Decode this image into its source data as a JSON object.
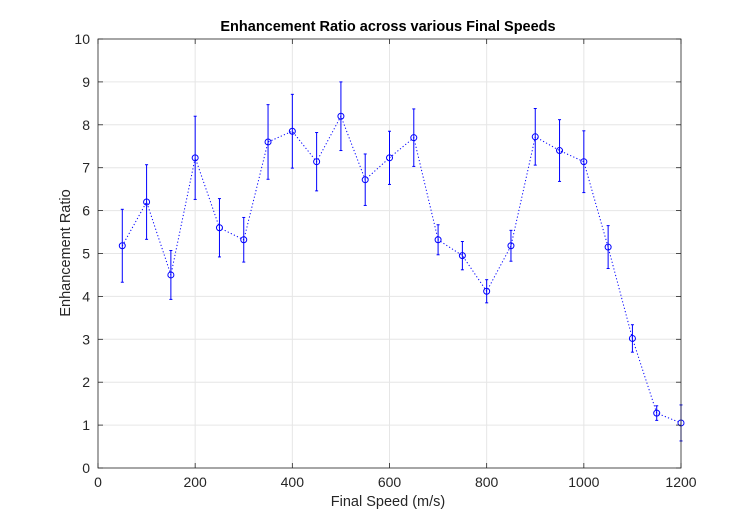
{
  "chart_data": {
    "type": "line",
    "title": "Enhancement Ratio across various Final Speeds",
    "xlabel": "Final Speed (m/s)",
    "ylabel": "Enhancement Ratio",
    "xlim": [
      0,
      1200
    ],
    "ylim": [
      0,
      10
    ],
    "xticks": [
      0,
      200,
      400,
      600,
      800,
      1000,
      1200
    ],
    "yticks": [
      0,
      1,
      2,
      3,
      4,
      5,
      6,
      7,
      8,
      9,
      10
    ],
    "grid": true,
    "legend": "none",
    "line_style": "dotted",
    "marker": "circle",
    "error_bars": true,
    "colors": {
      "series": "#0000ff",
      "grid": "#e6e6e6",
      "axes": "#262626",
      "background": "#ffffff"
    },
    "series": [
      {
        "x": [
          50,
          100,
          150,
          200,
          250,
          300,
          350,
          400,
          450,
          500,
          550,
          600,
          650,
          700,
          750,
          800,
          850,
          900,
          950,
          1000,
          1050,
          1100,
          1150,
          1200
        ],
        "y": [
          5.18,
          6.2,
          4.5,
          7.23,
          5.6,
          5.32,
          7.6,
          7.85,
          7.14,
          8.2,
          6.72,
          7.23,
          7.7,
          5.32,
          4.95,
          4.12,
          5.18,
          7.72,
          7.4,
          7.14,
          5.15,
          3.02,
          1.28,
          1.05
        ],
        "err_low": [
          0.85,
          0.87,
          0.57,
          0.97,
          0.68,
          0.52,
          0.87,
          0.86,
          0.68,
          0.8,
          0.6,
          0.62,
          0.67,
          0.35,
          0.33,
          0.27,
          0.36,
          0.66,
          0.72,
          0.72,
          0.5,
          0.32,
          0.17,
          0.42
        ],
        "err_high": [
          0.85,
          0.87,
          0.57,
          0.97,
          0.68,
          0.52,
          0.87,
          0.86,
          0.68,
          0.8,
          0.6,
          0.62,
          0.67,
          0.35,
          0.33,
          0.27,
          0.36,
          0.66,
          0.72,
          0.72,
          0.5,
          0.32,
          0.17,
          0.42
        ]
      }
    ]
  }
}
